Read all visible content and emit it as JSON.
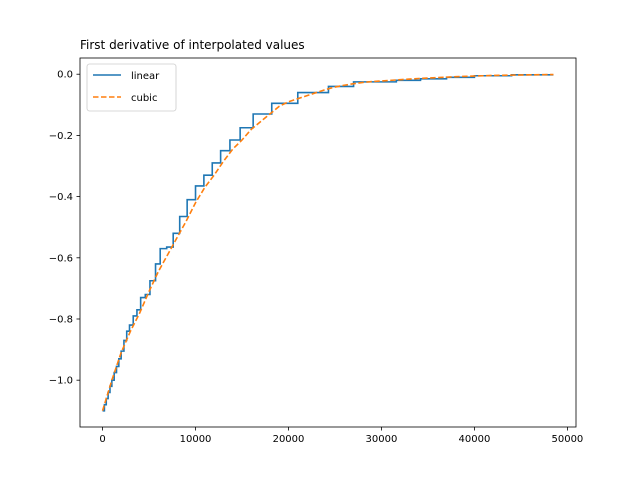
{
  "chart_data": {
    "type": "line",
    "title": "First derivative of interpolated values",
    "xlabel": "",
    "ylabel": "",
    "xlim": [
      -2425,
      50925
    ],
    "ylim": [
      -1.153,
      0.053
    ],
    "xticks": [
      0,
      10000,
      20000,
      30000,
      40000,
      50000
    ],
    "xtick_labels": [
      "0",
      "10000",
      "20000",
      "30000",
      "40000",
      "50000"
    ],
    "yticks": [
      0.0,
      -0.2,
      -0.4,
      -0.6,
      -0.8,
      -1.0
    ],
    "ytick_labels": [
      "0.0",
      "−0.2",
      "−0.4",
      "−0.6",
      "−0.8",
      "−1.0"
    ],
    "grid": false,
    "legend_position": "top-left",
    "series": [
      {
        "name": "linear",
        "color": "#1f77b4",
        "style": "steps",
        "x": [
          0,
          200,
          400,
          600,
          800,
          1000,
          1250,
          1500,
          1750,
          2000,
          2300,
          2600,
          2900,
          3300,
          3700,
          4100,
          4600,
          5100,
          5700,
          6200,
          6900,
          7600,
          8300,
          9100,
          10000,
          10900,
          11800,
          12700,
          13700,
          14800,
          16200,
          18200,
          21000,
          24300,
          27000,
          31600,
          34200,
          37000,
          40000,
          44000,
          48500
        ],
        "y": [
          -1.1,
          -1.08,
          -1.06,
          -1.04,
          -1.02,
          -1.0,
          -0.975,
          -0.955,
          -0.93,
          -0.905,
          -0.87,
          -0.84,
          -0.82,
          -0.79,
          -0.77,
          -0.73,
          -0.72,
          -0.675,
          -0.62,
          -0.57,
          -0.565,
          -0.52,
          -0.465,
          -0.41,
          -0.365,
          -0.33,
          -0.29,
          -0.25,
          -0.215,
          -0.175,
          -0.13,
          -0.095,
          -0.06,
          -0.04,
          -0.025,
          -0.02,
          -0.015,
          -0.01,
          -0.005,
          -0.002,
          -0.002
        ]
      },
      {
        "name": "cubic",
        "color": "#ff7f0e",
        "style": "dashed",
        "x": [
          0,
          1000,
          2000,
          3000,
          4000,
          5000,
          6000,
          7000,
          8000,
          9000,
          10000,
          11000,
          12000,
          13000,
          14000,
          15000,
          16000,
          17000,
          18000,
          19000,
          20000,
          21000,
          22000,
          23000,
          24000,
          25000,
          26000,
          27000,
          28000,
          29000,
          30000,
          32000,
          34000,
          36000,
          38000,
          40000,
          42000,
          44000,
          46000,
          48500
        ],
        "y": [
          -1.1,
          -1.0,
          -0.91,
          -0.84,
          -0.78,
          -0.71,
          -0.645,
          -0.59,
          -0.535,
          -0.48,
          -0.42,
          -0.37,
          -0.33,
          -0.285,
          -0.245,
          -0.215,
          -0.18,
          -0.155,
          -0.13,
          -0.105,
          -0.09,
          -0.08,
          -0.07,
          -0.06,
          -0.05,
          -0.042,
          -0.036,
          -0.031,
          -0.027,
          -0.024,
          -0.022,
          -0.018,
          -0.014,
          -0.011,
          -0.008,
          -0.006,
          -0.004,
          -0.003,
          -0.002,
          -0.001
        ]
      }
    ]
  }
}
